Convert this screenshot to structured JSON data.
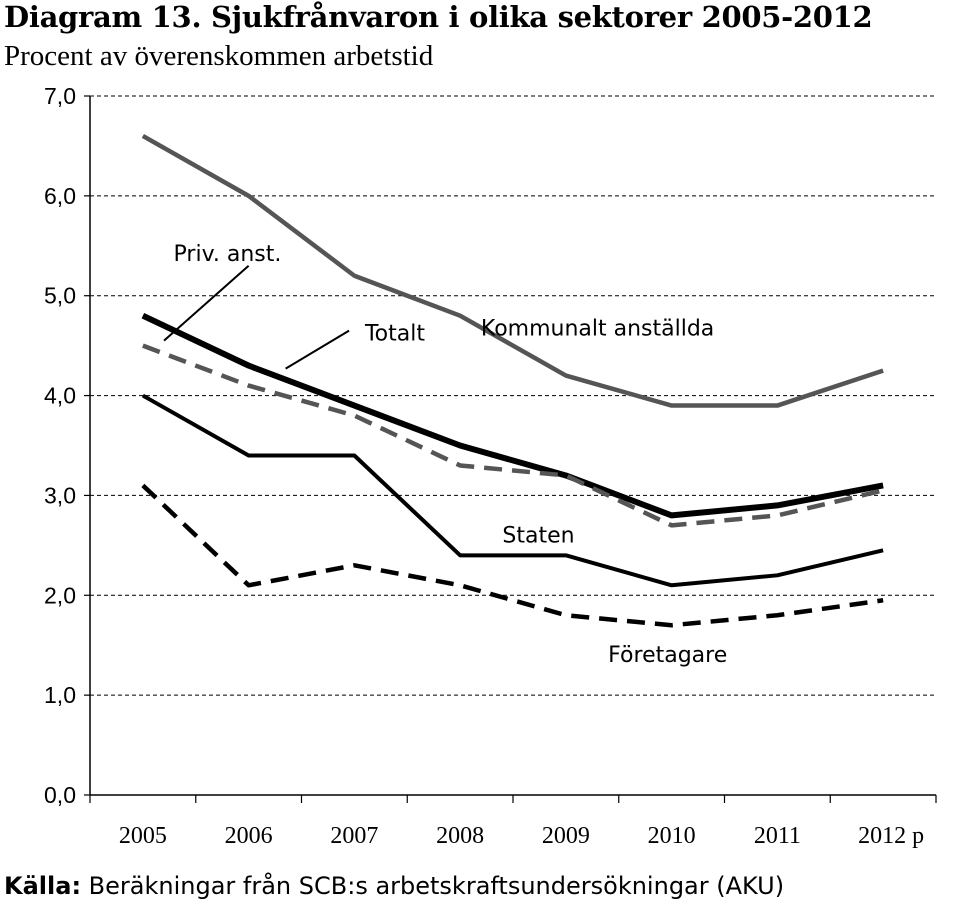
{
  "title": "Diagram 13. Sjukfrånvaron i olika sektorer 2005-2012",
  "subtitle": "Procent av överenskommen arbetstid",
  "source": {
    "label": "Källa:",
    "text": " Beräkningar från SCB:s arbetskraftsundersökningar (AKU)"
  },
  "chart_data": {
    "type": "line",
    "title": "Diagram 13. Sjukfrånvaron i olika sektorer 2005-2012",
    "subtitle": "Procent av överenskommen arbetstid",
    "categories": [
      "2005",
      "2006",
      "2007",
      "2008",
      "2009",
      "2010",
      "2011",
      "2012 p"
    ],
    "ylim": [
      0,
      7
    ],
    "yticks": [
      "0,0",
      "1,0",
      "2,0",
      "3,0",
      "4,0",
      "5,0",
      "6,0",
      "7,0"
    ],
    "grid": "horizontal dashed",
    "series": [
      {
        "name": "Kommunalt anställda",
        "values": [
          6.6,
          6.0,
          5.2,
          4.8,
          4.2,
          3.9,
          3.9,
          4.25
        ],
        "color": "#555555",
        "style": "solid",
        "width": 4.5
      },
      {
        "name": "Totalt",
        "values": [
          4.8,
          4.3,
          3.9,
          3.5,
          3.2,
          2.8,
          2.9,
          3.1
        ],
        "color": "#000000",
        "style": "solid",
        "width": 6
      },
      {
        "name": "Priv. anst.",
        "values": [
          4.5,
          4.1,
          3.8,
          3.3,
          3.2,
          2.7,
          2.8,
          3.05
        ],
        "color": "#555555",
        "style": "dashed",
        "width": 4.5
      },
      {
        "name": "Staten",
        "values": [
          4.0,
          3.4,
          3.4,
          2.4,
          2.4,
          2.1,
          2.2,
          2.45
        ],
        "color": "#000000",
        "style": "solid",
        "width": 4
      },
      {
        "name": "Företagare",
        "values": [
          3.1,
          2.1,
          2.3,
          2.1,
          1.8,
          1.7,
          1.8,
          1.95
        ],
        "color": "#000000",
        "style": "dashed",
        "width": 4.5
      }
    ]
  }
}
